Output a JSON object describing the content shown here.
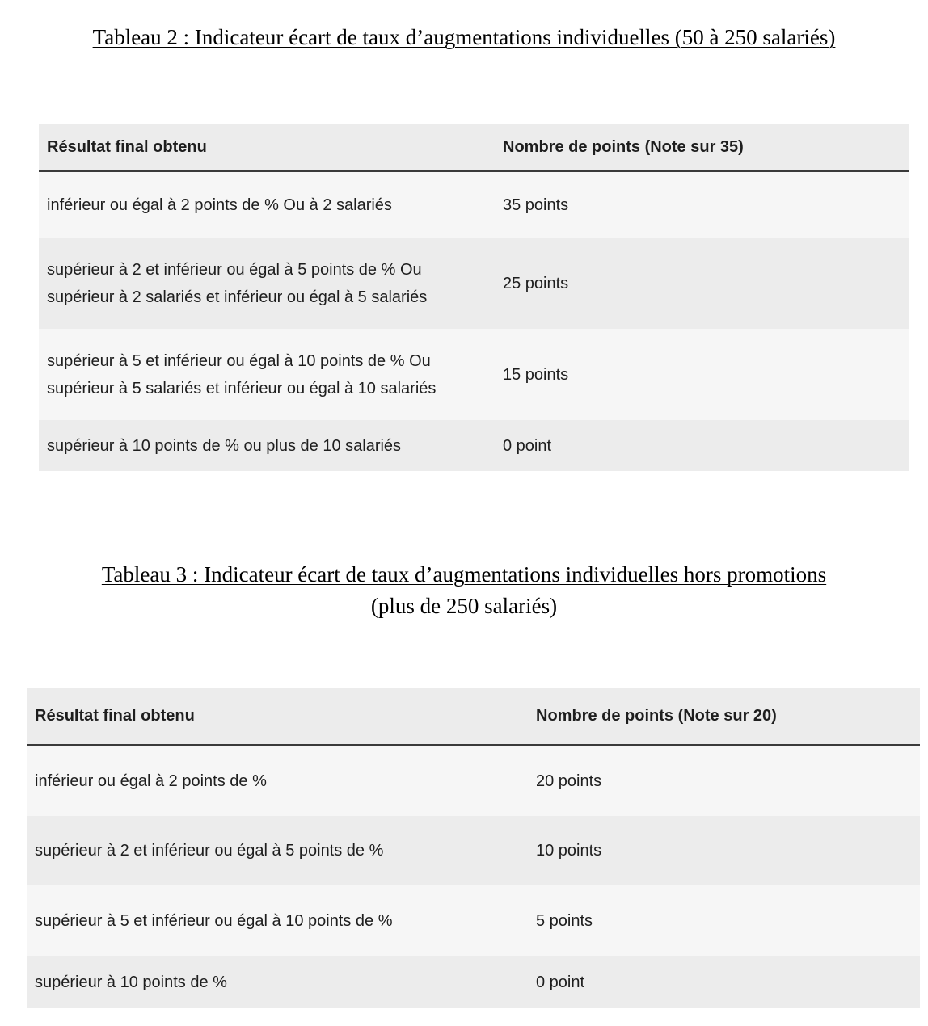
{
  "table2": {
    "caption": "Tableau 2 : Indicateur écart de taux d’augmentations individuelles (50 à 250 salariés)",
    "headers": [
      "Résultat final obtenu",
      "Nombre de points (Note sur 35)"
    ],
    "rows": [
      {
        "result_line1": "inférieur ou égal à 2 points de % Ou à 2 salariés",
        "result_line2": "",
        "points": "35 points"
      },
      {
        "result_line1": "supérieur à 2 et inférieur ou égal à 5 points de % Ou",
        "result_line2": "supérieur à 2 salariés et inférieur ou égal à 5 salariés",
        "points": "25 points"
      },
      {
        "result_line1": "supérieur à 5 et inférieur ou égal à 10 points de % Ou",
        "result_line2": "supérieur à 5 salariés et inférieur ou égal à 10 salariés",
        "points": "15 points"
      },
      {
        "result_line1": "supérieur à 10 points de % ou plus de 10 salariés",
        "result_line2": "",
        "points": "0 point"
      }
    ]
  },
  "table3": {
    "caption_line1": "Tableau 3 : Indicateur écart de taux d’augmentations individuelles hors promotions",
    "caption_line2": "(plus de 250 salariés)",
    "headers": [
      "Résultat final obtenu",
      "Nombre de points (Note sur 20)"
    ],
    "rows": [
      {
        "result": "inférieur ou égal à 2 points de %",
        "points": "20 points"
      },
      {
        "result": "supérieur à 2 et inférieur ou égal à 5 points de %",
        "points": "10 points"
      },
      {
        "result": "supérieur à 5 et inférieur ou égal à 10 points de %",
        "points": "5 points"
      },
      {
        "result": "supérieur à 10 points de %",
        "points": "0 point"
      }
    ]
  }
}
